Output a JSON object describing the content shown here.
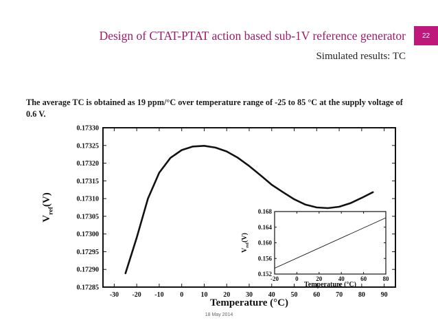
{
  "slide": {
    "title": "Design of CTAT-PTAT action based sub-1V reference generator",
    "page_number": "22",
    "subtitle": "Simulated results: TC",
    "body": "The average TC is obtained as 19 ppm/°C over temperature range of -25 to 85 °C at the supply voltage of 0.6 V.",
    "date": "18 May 2014"
  },
  "colors": {
    "title": "#9b1b6b",
    "badge": "#c0177a"
  },
  "chart_data": [
    {
      "type": "line",
      "title": "",
      "xlabel": "Temperature (°C)",
      "ylabel_main": "V",
      "ylabel_sub": "ref",
      "ylabel_tail": "(V)",
      "xlim": [
        -35,
        95
      ],
      "ylim": [
        0.17285,
        0.1733
      ],
      "xticks": [
        -30,
        -20,
        -10,
        0,
        10,
        20,
        30,
        40,
        50,
        60,
        70,
        80,
        90
      ],
      "xtick_labels": [
        "-30",
        "-20",
        "-10",
        "0",
        "10",
        "20",
        "30",
        "40",
        "50",
        "60",
        "70",
        "80",
        "90"
      ],
      "yticks": [
        0.17285,
        0.1729,
        0.17295,
        0.173,
        0.17305,
        0.1731,
        0.17315,
        0.1732,
        0.17325,
        0.1733
      ],
      "ytick_labels": [
        "0.17285",
        "0.17290",
        "0.17295",
        "0.17300",
        "0.17305",
        "0.17310",
        "0.17315",
        "0.17320",
        "0.17325",
        "0.17330"
      ],
      "grid": false,
      "series": [
        {
          "name": "Vref",
          "x": [
            -25,
            -20,
            -15,
            -10,
            -5,
            0,
            5,
            10,
            15,
            20,
            25,
            30,
            35,
            40,
            45,
            50,
            55,
            60,
            65,
            70,
            75,
            80,
            85
          ],
          "y": [
            0.172889,
            0.17299,
            0.1731,
            0.173173,
            0.173215,
            0.173237,
            0.173247,
            0.173249,
            0.173244,
            0.173233,
            0.173215,
            0.173192,
            0.173166,
            0.173139,
            0.173118,
            0.173098,
            0.173083,
            0.173075,
            0.173073,
            0.173077,
            0.173087,
            0.173102,
            0.173118
          ]
        }
      ]
    },
    {
      "type": "line",
      "title": "",
      "xlabel": "Temperature (°C)",
      "ylabel_main": "V",
      "ylabel_sub": "ref",
      "ylabel_tail": "(V)",
      "xlim": [
        -20,
        80
      ],
      "ylim": [
        0.152,
        0.168
      ],
      "xticks": [
        -20,
        0,
        20,
        40,
        60,
        80
      ],
      "xtick_labels": [
        "-20",
        "0",
        "20",
        "40",
        "60",
        "80"
      ],
      "yticks": [
        0.152,
        0.156,
        0.16,
        0.164,
        0.168
      ],
      "ytick_labels": [
        "0.152",
        "0.156",
        "0.160",
        "0.164",
        "0.168"
      ],
      "grid": false,
      "series": [
        {
          "name": "Vref inset",
          "x": [
            -20,
            80
          ],
          "y": [
            0.1535,
            0.1664
          ]
        }
      ]
    }
  ]
}
